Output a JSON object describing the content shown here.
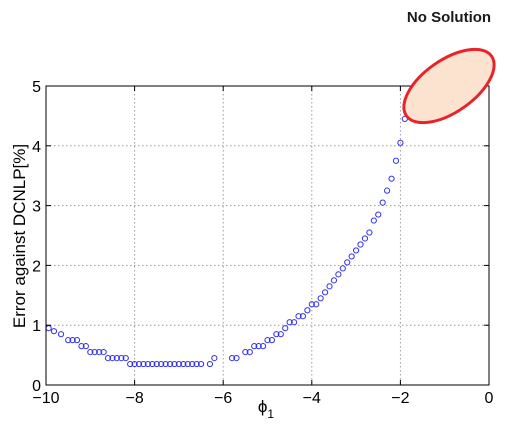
{
  "chart_data": {
    "type": "scatter",
    "title": "",
    "xlabel": "ϕ",
    "xlabel_subscript": "1",
    "ylabel": "Error against DCNLP[%]",
    "xlim": [
      -10,
      0
    ],
    "ylim": [
      0,
      5
    ],
    "xticks": [
      -10,
      -8,
      -6,
      -4,
      -2,
      0
    ],
    "yticks": [
      0,
      1,
      2,
      3,
      4,
      5
    ],
    "xtick_labels": [
      "−10",
      "−8",
      "−6",
      "−4",
      "−2",
      "0"
    ],
    "ytick_labels": [
      "0",
      "1",
      "2",
      "3",
      "4",
      "5"
    ],
    "grid": true,
    "marker": "circle-open",
    "marker_color": "#3333ee",
    "annotation": {
      "text": "No Solution",
      "region_center": [
        -1.0,
        4.95
      ],
      "region_color": "#fbe3cf",
      "edge_color": "#e8232a"
    },
    "series": [
      {
        "x": [
          -9.94,
          -9.82,
          -9.66,
          -9.5,
          -9.4,
          -9.3,
          -9.2,
          -9.1,
          -9.0,
          -8.9,
          -8.8,
          -8.7,
          -8.6,
          -8.5,
          -8.4,
          -8.3,
          -8.2,
          -8.1,
          -8.0,
          -7.9,
          -7.8,
          -7.7,
          -7.6,
          -7.5,
          -7.4,
          -7.3,
          -7.2,
          -7.1,
          -7.0,
          -6.9,
          -6.8,
          -6.7,
          -6.6,
          -6.5,
          -6.3,
          -6.2,
          -5.8,
          -5.7,
          -5.5,
          -5.4,
          -5.3,
          -5.2,
          -5.1,
          -5.0,
          -4.9,
          -4.8,
          -4.7,
          -4.6,
          -4.5,
          -4.4,
          -4.3,
          -4.2,
          -4.1,
          -4.0,
          -3.9,
          -3.8,
          -3.7,
          -3.6,
          -3.5,
          -3.4,
          -3.3,
          -3.2,
          -3.1,
          -3.0,
          -2.9,
          -2.8,
          -2.7,
          -2.6,
          -2.5,
          -2.4,
          -2.3,
          -2.2,
          -2.1,
          -2.0,
          -1.9
        ],
        "y": [
          0.95,
          0.9,
          0.85,
          0.75,
          0.75,
          0.75,
          0.65,
          0.65,
          0.55,
          0.55,
          0.55,
          0.55,
          0.45,
          0.45,
          0.45,
          0.45,
          0.45,
          0.35,
          0.35,
          0.35,
          0.35,
          0.35,
          0.35,
          0.35,
          0.35,
          0.35,
          0.35,
          0.35,
          0.35,
          0.35,
          0.35,
          0.35,
          0.35,
          0.35,
          0.35,
          0.45,
          0.45,
          0.45,
          0.55,
          0.55,
          0.65,
          0.65,
          0.65,
          0.75,
          0.75,
          0.85,
          0.85,
          0.95,
          1.05,
          1.05,
          1.15,
          1.15,
          1.25,
          1.35,
          1.35,
          1.45,
          1.55,
          1.65,
          1.75,
          1.85,
          1.95,
          2.05,
          2.15,
          2.25,
          2.35,
          2.45,
          2.55,
          2.75,
          2.85,
          3.05,
          3.25,
          3.45,
          3.75,
          4.05,
          4.45
        ]
      }
    ]
  }
}
